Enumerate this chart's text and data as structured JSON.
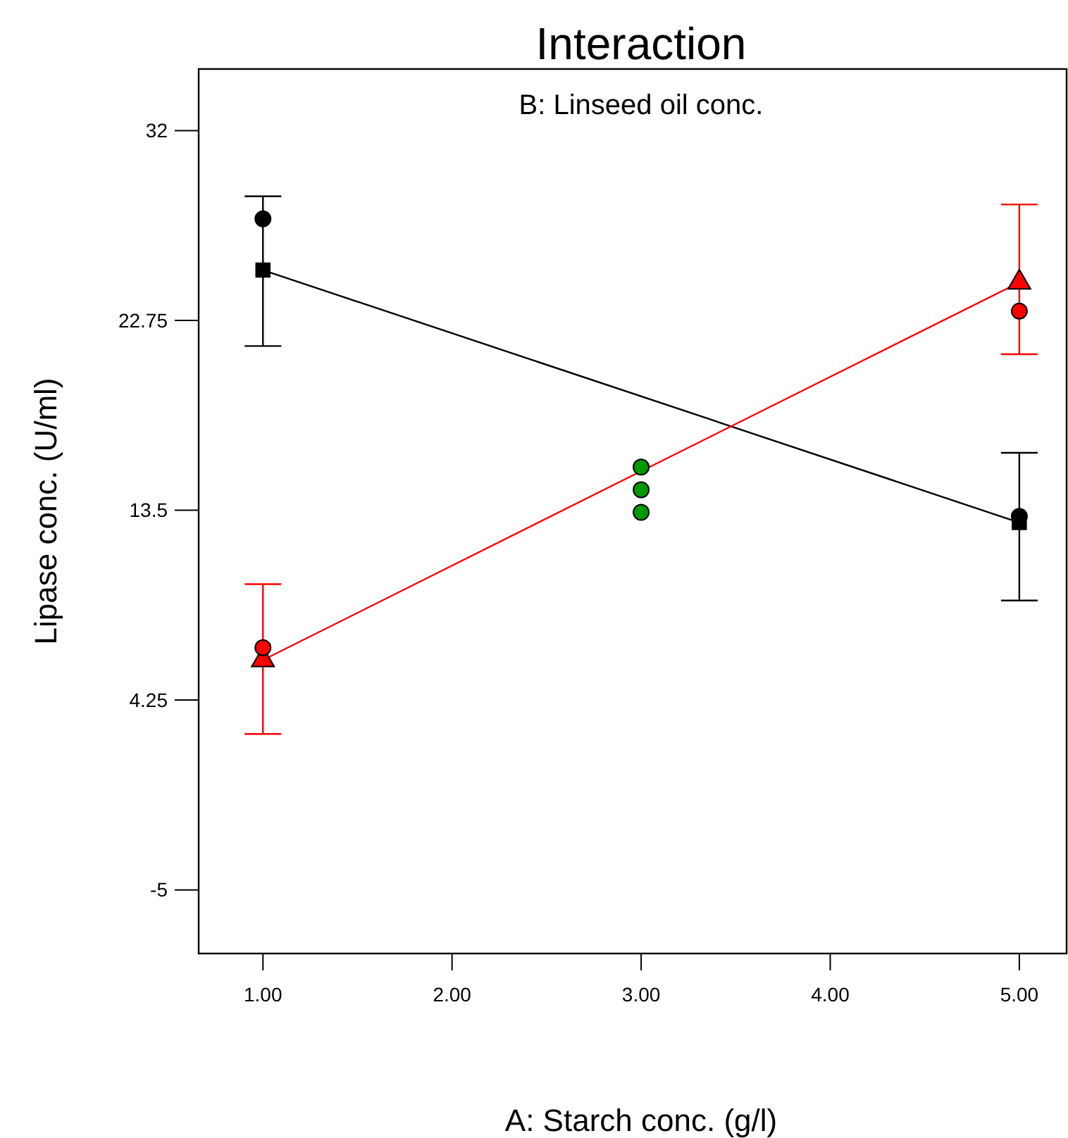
{
  "chart_data": {
    "type": "line",
    "title": "Interaction",
    "subtitle": "B: Linseed oil conc.",
    "xlabel": "A: Starch conc. (g/l)",
    "ylabel": "Lipase conc. (U/ml)",
    "xlim": [
      0.66,
      5.25
    ],
    "ylim": [
      -8.1,
      35.0
    ],
    "xticks": [
      {
        "value": 1,
        "label": "1.00"
      },
      {
        "value": 2,
        "label": "2.00"
      },
      {
        "value": 3,
        "label": "3.00"
      },
      {
        "value": 4,
        "label": "4.00"
      },
      {
        "value": 5,
        "label": "5.00"
      }
    ],
    "yticks": [
      -5,
      4.25,
      13.5,
      22.75,
      32
    ],
    "grid": false,
    "series": [
      {
        "color": "#000000",
        "x": [
          1,
          5
        ],
        "values": [
          25.2,
          12.9
        ],
        "marker": "square",
        "errors": [
          [
            21.5,
            28.8
          ],
          [
            9.1,
            16.3
          ]
        ]
      },
      {
        "color": "#ff0000",
        "x": [
          1,
          5
        ],
        "values": [
          6.2,
          24.6
        ],
        "marker": "triangle",
        "errors": [
          [
            2.6,
            9.9
          ],
          [
            21.1,
            28.4
          ]
        ]
      },
      {
        "type": "scatter",
        "color": "#000000",
        "x": [
          1,
          5
        ],
        "values": [
          27.7,
          13.2
        ],
        "marker": "circle"
      },
      {
        "type": "scatter",
        "color": "#ff0000",
        "x": [
          1,
          5
        ],
        "values": [
          6.8,
          23.2
        ],
        "marker": "circle"
      },
      {
        "type": "scatter",
        "color": "#009900",
        "x": [
          3,
          3,
          3
        ],
        "values": [
          15.6,
          14.5,
          13.4
        ],
        "marker": "circle"
      }
    ]
  }
}
